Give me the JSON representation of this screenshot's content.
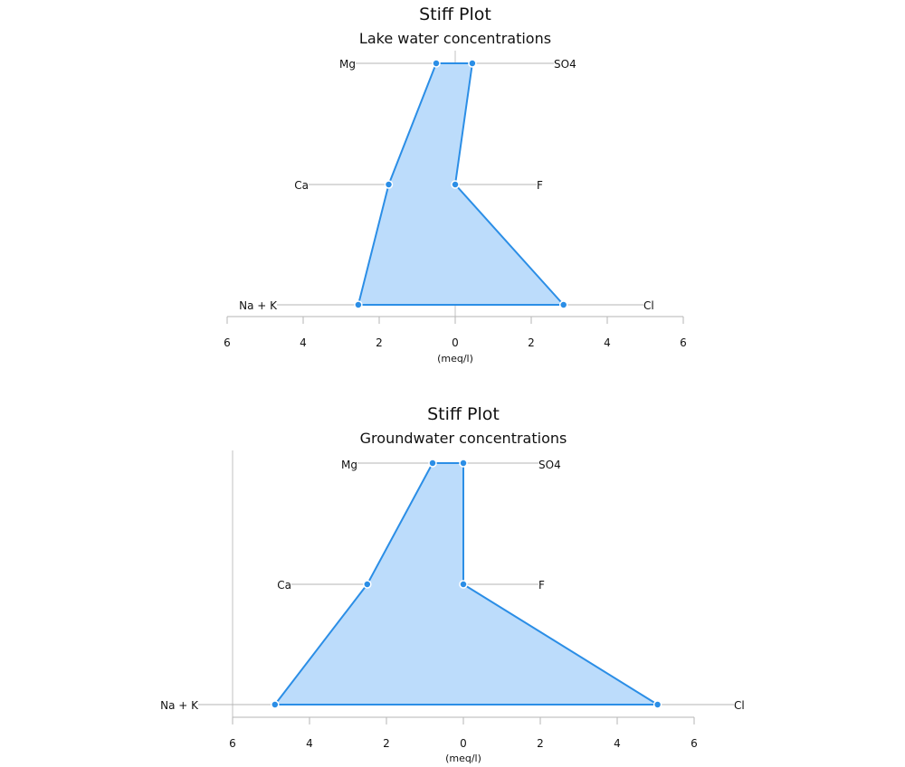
{
  "chart_data": [
    {
      "type": "area",
      "title": "Stiff Plot",
      "subtitle": "Lake water concentrations",
      "xlabel": "(meq/l)",
      "x_tick_labels": [
        "6",
        "4",
        "2",
        "0",
        "2",
        "4",
        "6"
      ],
      "xlim": [
        -6,
        6
      ],
      "grid": false,
      "cations": [
        "Mg",
        "Ca",
        "Na + K"
      ],
      "anions": [
        "SO4",
        "F",
        "Cl"
      ],
      "cation_values": [
        0.5,
        1.75,
        2.55
      ],
      "anion_values": [
        0.45,
        0.0,
        2.85
      ],
      "fill_color": "#bcdcfb",
      "line_color": "#2b8ee6",
      "center_line": true
    },
    {
      "type": "area",
      "title": "Stiff Plot",
      "subtitle": "Groundwater concentrations",
      "xlabel": "(meq/l)",
      "x_tick_labels": [
        "6",
        "4",
        "2",
        "0",
        "2",
        "4",
        "6"
      ],
      "xlim": [
        -6,
        6
      ],
      "grid": false,
      "cations": [
        "Mg",
        "Ca",
        "Na + K"
      ],
      "anions": [
        "SO4",
        "F",
        "Cl"
      ],
      "cation_values": [
        0.8,
        2.5,
        4.9
      ],
      "anion_values": [
        0.0,
        0.0,
        5.05
      ],
      "fill_color": "#bcdcfb",
      "line_color": "#2b8ee6",
      "center_line": false
    }
  ]
}
